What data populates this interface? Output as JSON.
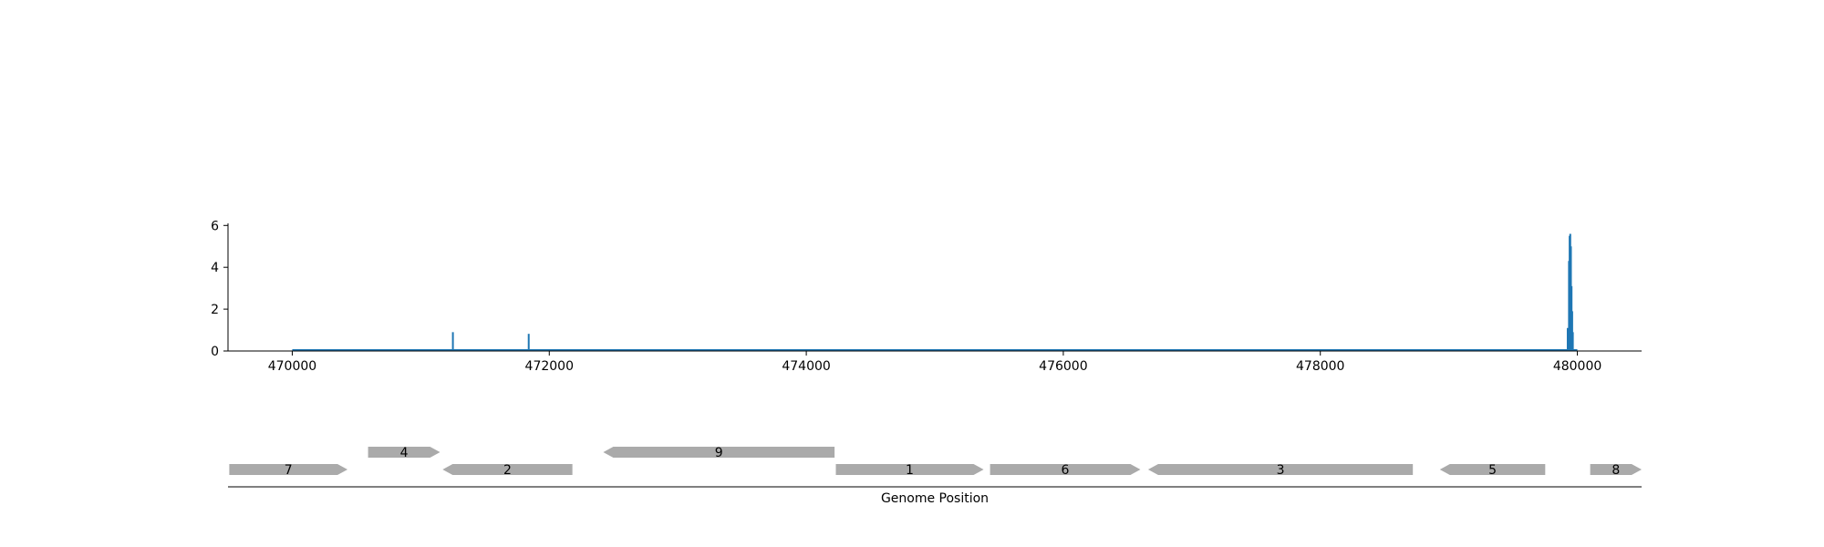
{
  "chart_data": [
    {
      "type": "line",
      "title": "",
      "xlabel": "",
      "ylabel": "",
      "xlim": [
        469500,
        480500
      ],
      "ylim": [
        0,
        6.1
      ],
      "xticks": [
        470000,
        472000,
        474000,
        476000,
        478000,
        480000
      ],
      "xtick_labels": [
        "470000",
        "472000",
        "474000",
        "476000",
        "478000",
        "480000"
      ],
      "yticks": [
        0,
        2,
        4,
        6
      ],
      "ytick_labels": [
        "0",
        "2",
        "4",
        "6"
      ],
      "grid": false,
      "line_color": "#1f77b4",
      "x_start": 470000,
      "x_end": 480000,
      "baseline": 0,
      "peaks": [
        {
          "x": 471250,
          "y": 0.9
        },
        {
          "x": 471840,
          "y": 0.82
        },
        {
          "x": 479925,
          "y": 1.1
        },
        {
          "x": 479935,
          "y": 4.3
        },
        {
          "x": 479940,
          "y": 5.5
        },
        {
          "x": 479945,
          "y": 5.6
        },
        {
          "x": 479950,
          "y": 5.0
        },
        {
          "x": 479955,
          "y": 3.1
        },
        {
          "x": 479960,
          "y": 1.9
        },
        {
          "x": 479965,
          "y": 0.9
        }
      ]
    },
    {
      "type": "gene-track",
      "xlabel": "Genome Position",
      "xlim": [
        469500,
        480500
      ],
      "gene_color": "#aaaaaa",
      "genes": [
        {
          "label": "7",
          "start": 469510,
          "end": 470430,
          "strand": "+",
          "row": 0
        },
        {
          "label": "4",
          "start": 470590,
          "end": 471150,
          "strand": "+",
          "row": 1
        },
        {
          "label": "2",
          "start": 471170,
          "end": 472180,
          "strand": "-",
          "row": 0
        },
        {
          "label": "9",
          "start": 472420,
          "end": 474220,
          "strand": "-",
          "row": 1
        },
        {
          "label": "1",
          "start": 474230,
          "end": 475380,
          "strand": "+",
          "row": 0
        },
        {
          "label": "6",
          "start": 475430,
          "end": 476600,
          "strand": "+",
          "row": 0
        },
        {
          "label": "3",
          "start": 476660,
          "end": 478720,
          "strand": "-",
          "row": 0
        },
        {
          "label": "5",
          "start": 478930,
          "end": 479750,
          "strand": "-",
          "row": 0
        },
        {
          "label": "8",
          "start": 480100,
          "end": 480500,
          "strand": "+",
          "row": 0
        }
      ]
    }
  ]
}
